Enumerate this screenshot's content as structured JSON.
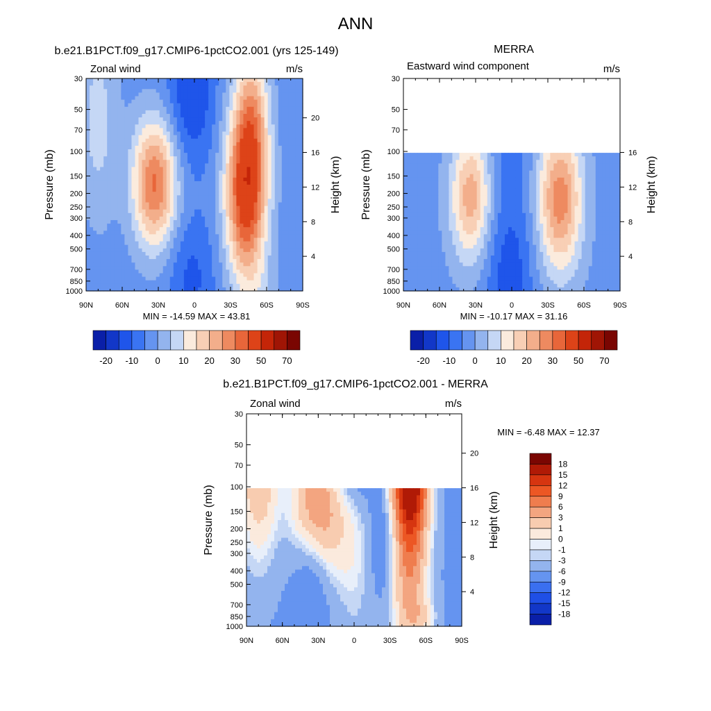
{
  "figure": {
    "title": "ANN"
  },
  "chart_data": [
    {
      "id": "model",
      "type": "heatmap",
      "title": "b.e21.B1PCT.f09_g17.CMIP6-1pctCO2.001 (yrs 125-149)",
      "left_subtitle": "Zonal wind",
      "right_subtitle": "m/s",
      "ylabel": "Pressure (mb)",
      "ylabel_right": "Height (km)",
      "x_ticks": [
        "90N",
        "60N",
        "30N",
        "0",
        "30S",
        "60S",
        "90S"
      ],
      "y_ticks": [
        "30",
        "50",
        "70",
        "100",
        "150",
        "200",
        "250",
        "300",
        "400",
        "500",
        "700",
        "850",
        "1000"
      ],
      "height_ticks": [
        "20",
        "16",
        "12",
        "8",
        "4"
      ],
      "stats": "MIN = -14.59  MAX = 43.81",
      "min": -14.59,
      "max": 43.81,
      "data_top_mb": 30
    },
    {
      "id": "obs",
      "type": "heatmap",
      "title": "MERRA",
      "left_subtitle": "Eastward wind component",
      "right_subtitle": "m/s",
      "ylabel": "Pressure (mb)",
      "ylabel_right": "Height (km)",
      "x_ticks": [
        "90N",
        "60N",
        "30N",
        "0",
        "30S",
        "60S",
        "90S"
      ],
      "y_ticks": [
        "30",
        "50",
        "70",
        "100",
        "150",
        "200",
        "250",
        "300",
        "400",
        "500",
        "700",
        "850",
        "1000"
      ],
      "height_ticks": [
        "16",
        "12",
        "8",
        "4"
      ],
      "stats": "MIN = -10.17  MAX = 31.16",
      "min": -10.17,
      "max": 31.16,
      "data_top_mb": 100
    },
    {
      "id": "diff",
      "type": "heatmap",
      "title": "b.e21.B1PCT.f09_g17.CMIP6-1pctCO2.001 - MERRA",
      "left_subtitle": "Zonal wind",
      "right_subtitle": "m/s",
      "ylabel": "Pressure (mb)",
      "ylabel_right": "Height (km)",
      "x_ticks": [
        "90N",
        "60N",
        "30N",
        "0",
        "30S",
        "60S",
        "90S"
      ],
      "y_ticks": [
        "30",
        "50",
        "70",
        "100",
        "150",
        "200",
        "250",
        "300",
        "400",
        "500",
        "700",
        "850",
        "1000"
      ],
      "height_ticks": [
        "20",
        "16",
        "12",
        "8",
        "4"
      ],
      "stats": "MIN =  -6.48  MAX =  12.37",
      "min": -6.48,
      "max": 12.37,
      "data_top_mb": 100
    }
  ],
  "colorbars": {
    "abs": {
      "labels": [
        "-20",
        "-10",
        "0",
        "10",
        "20",
        "30",
        "50",
        "70"
      ],
      "colors": [
        "#050a80",
        "#0a1fa8",
        "#1237c8",
        "#1f55ea",
        "#3a74f2",
        "#6594f0",
        "#93b4ee",
        "#c5d7f5",
        "#fbebdd",
        "#f8cfb5",
        "#f3ae8b",
        "#ee8a60",
        "#e8663a",
        "#dd4318",
        "#c42508",
        "#a01505",
        "#7a0602"
      ]
    },
    "diff": {
      "labels": [
        "18",
        "15",
        "12",
        "9",
        "6",
        "3",
        "1",
        "0",
        "-1",
        "-3",
        "-6",
        "-9",
        "-12",
        "-15",
        "-18"
      ],
      "colors": [
        "#7a0602",
        "#b01a06",
        "#d63510",
        "#ec5724",
        "#ef7d4e",
        "#f3a580",
        "#f8ccb0",
        "#fbeadd",
        "#e8effa",
        "#c5d7f5",
        "#93b4ee",
        "#6594f0",
        "#3a6ff0",
        "#1f4fe6",
        "#1237c8",
        "#0a1fa8",
        "#050a80"
      ]
    }
  }
}
